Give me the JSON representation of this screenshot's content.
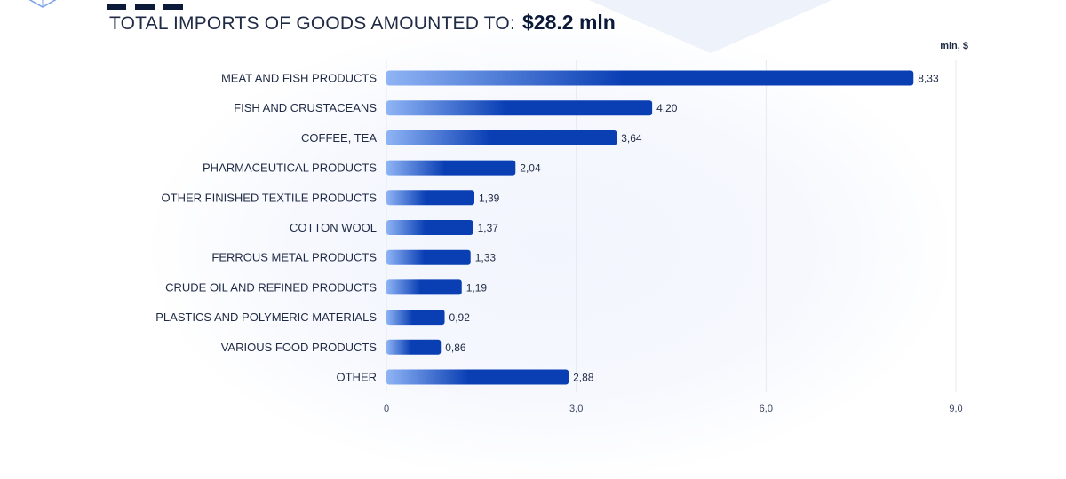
{
  "header": {
    "title_prefix": "TOTAL IMPORTS OF GOODS AMOUNTED TO:",
    "title_value": "$28.2 mln",
    "unit": "mln, $"
  },
  "colors": {
    "bar_start": "#8fb4f5",
    "bar_end": "#0a3fb4",
    "grid": "#e6e9f0"
  },
  "chart_data": {
    "type": "bar",
    "orientation": "horizontal",
    "categories": [
      "MEAT AND FISH PRODUCTS",
      "FISH AND CRUSTACEANS",
      "COFFEE, TEA",
      "PHARMACEUTICAL PRODUCTS",
      "OTHER FINISHED TEXTILE PRODUCTS",
      "COTTON WOOL",
      "FERROUS METAL PRODUCTS",
      "CRUDE OIL AND REFINED PRODUCTS",
      "PLASTICS AND POLYMERIC MATERIALS",
      "VARIOUS FOOD PRODUCTS",
      "OTHER"
    ],
    "values": [
      8.33,
      4.2,
      3.64,
      2.04,
      1.39,
      1.37,
      1.33,
      1.19,
      0.92,
      0.86,
      2.88
    ],
    "value_labels": [
      "8,33",
      "4,20",
      "3,64",
      "2,04",
      "1,39",
      "1,37",
      "1,33",
      "1,19",
      "0,92",
      "0,86",
      "2,88"
    ],
    "xlim": [
      0,
      9
    ],
    "xticks": [
      0,
      3,
      6,
      9
    ],
    "xtick_labels": [
      "0",
      "3,0",
      "6,0",
      "9,0"
    ],
    "grid": true,
    "legend": false
  }
}
